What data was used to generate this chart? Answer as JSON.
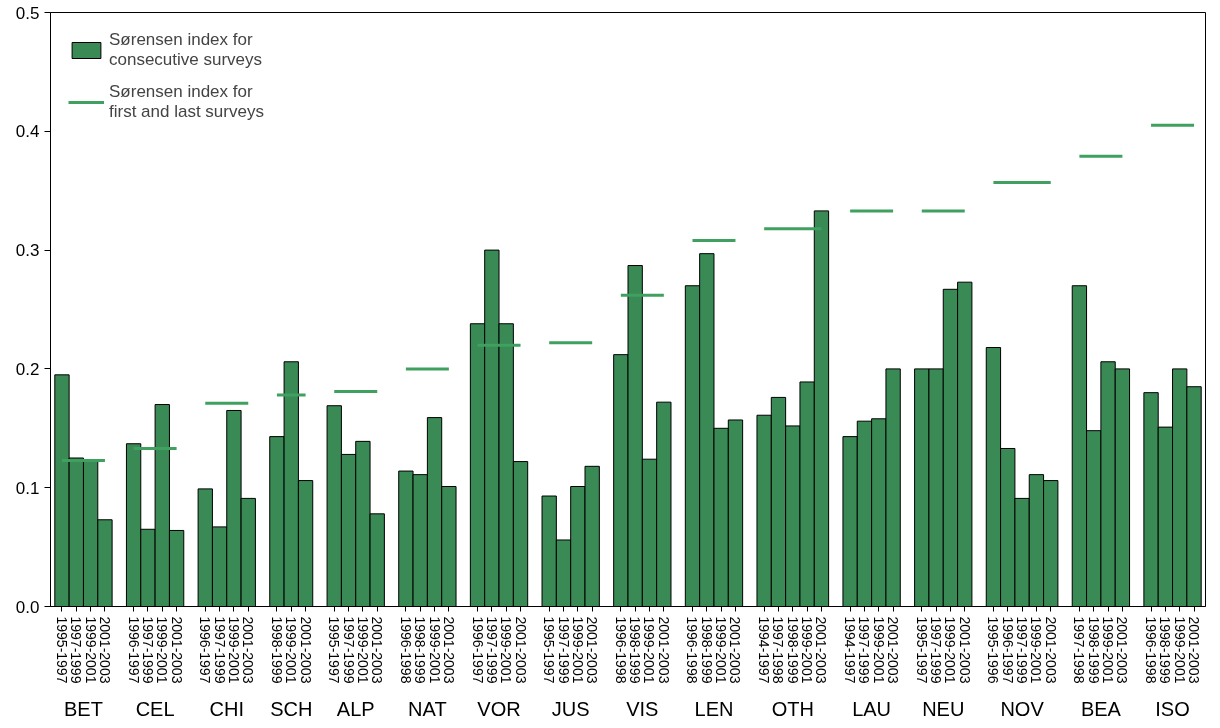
{
  "chart_data": {
    "type": "bar",
    "categories": [
      "1995-1997",
      "1997-1999",
      "1999-2001",
      "2001-2003",
      null,
      "1996-1997",
      "1997-1999",
      "1999-2001",
      "2001-2003",
      null,
      "1996-1997",
      "1997-1999",
      "1999-2001",
      "2001-2003",
      null,
      "1998-1999",
      "1999-2001",
      "2001-2003",
      null,
      "1995-1997",
      "1997-1999",
      "1999-2001",
      "2001-2003",
      null,
      "1996-1998",
      "1998-1999",
      "1999-2001",
      "2001-2003",
      null,
      "1996-1997",
      "1997-1999",
      "1999-2001",
      "2001-2003",
      null,
      "1995-1997",
      "1997-1999",
      "1999-2001",
      "2001-2003",
      null,
      "1996-1998",
      "1998-1999",
      "1999-2001",
      "2001-2003",
      null,
      "1996-1998",
      "1998-1999",
      "1999-2001",
      "2001-2003",
      null,
      "1994-1997",
      "1997-1998",
      "1998-1999",
      "1999-2001",
      "2001-2003",
      null,
      "1994-1997",
      "1997-1999",
      "1999-2001",
      "2001-2003",
      null,
      "1995-1997",
      "1997-1999",
      "1999-2001",
      "2001-2003",
      null,
      "1995-1996",
      "1996-1997",
      "1997-1999",
      "1999-2001",
      "2001-2003",
      null,
      "1997-1998",
      "1998-1999",
      "1999-2001",
      "2001-2003",
      null,
      "1996-1998",
      "1998-1999",
      "1999-2001",
      "2001-2003"
    ],
    "series": [
      {
        "name": "Sørensen index for\nconsecutive surveys",
        "color": "#3a8a55",
        "values": [
          0.195,
          0.125,
          0.123,
          0.073,
          null,
          0.137,
          0.065,
          0.17,
          0.064,
          null,
          0.099,
          0.067,
          0.165,
          0.091,
          null,
          0.143,
          0.206,
          0.106,
          null,
          0.169,
          0.128,
          0.139,
          0.078,
          null,
          0.114,
          0.111,
          0.159,
          0.101,
          null,
          0.238,
          0.3,
          0.238,
          0.122,
          null,
          0.093,
          0.056,
          0.101,
          0.118,
          null,
          0.212,
          0.287,
          0.124,
          0.172,
          null,
          0.27,
          0.297,
          0.15,
          0.157,
          null,
          0.161,
          0.176,
          0.152,
          0.189,
          0.333,
          null,
          0.143,
          0.156,
          0.158,
          0.2,
          null,
          0.2,
          0.2,
          0.267,
          0.273,
          null,
          0.218,
          0.133,
          0.091,
          0.111,
          0.106,
          null,
          0.27,
          0.148,
          0.206,
          0.2,
          null,
          0.18,
          0.151,
          0.2,
          0.185
        ]
      },
      {
        "name": "Sørensen index for\nfirst and last surveys",
        "type": "line",
        "color": "#3fa060",
        "values": [
          0.123,
          0.123,
          0.123,
          0.123,
          null,
          0.133,
          0.133,
          0.133,
          0.133,
          null,
          0.171,
          0.171,
          0.171,
          0.171,
          null,
          0.178,
          0.178,
          0.178,
          null,
          0.181,
          0.181,
          0.181,
          0.181,
          null,
          0.2,
          0.2,
          0.2,
          0.2,
          null,
          0.22,
          0.22,
          0.22,
          0.22,
          null,
          0.222,
          0.222,
          0.222,
          0.222,
          null,
          0.262,
          0.262,
          0.262,
          0.262,
          null,
          0.308,
          0.308,
          0.308,
          0.308,
          null,
          0.318,
          0.318,
          0.318,
          0.318,
          0.318,
          null,
          0.333,
          0.333,
          0.333,
          0.333,
          null,
          0.333,
          0.333,
          0.333,
          0.333,
          null,
          0.357,
          0.357,
          0.357,
          0.357,
          0.357,
          null,
          0.379,
          0.379,
          0.379,
          0.379,
          null,
          0.405,
          0.405,
          0.405,
          0.405
        ]
      }
    ],
    "annotations": [
      "BET",
      "CEL",
      "CHI",
      "SCH",
      "ALP",
      "NAT",
      "VOR",
      "JUS",
      "VIS",
      "LEN",
      "OTH",
      "LAU",
      "NEU",
      "NOV",
      "BEA",
      "ISO"
    ],
    "ylim": [
      0,
      0.5
    ],
    "yticks": [
      {
        "value": 0,
        "label": "0.0"
      },
      {
        "value": 0.1,
        "label": "0.1"
      },
      {
        "value": 0.2,
        "label": "0.2"
      },
      {
        "value": 0.3,
        "label": "0.3"
      },
      {
        "value": 0.4,
        "label": "0.4"
      },
      {
        "value": 0.5,
        "label": "0.5"
      }
    ],
    "legend": "top left"
  }
}
